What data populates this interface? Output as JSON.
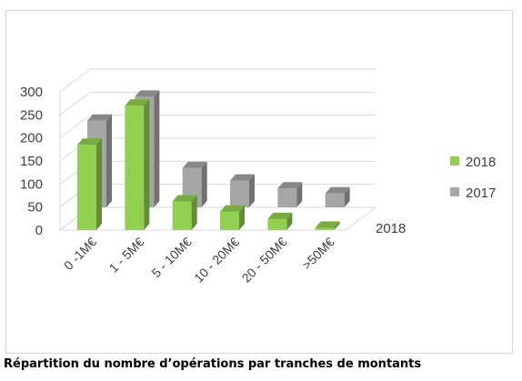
{
  "chart_data": {
    "type": "bar",
    "style": "3d-clustered",
    "title": "",
    "xlabel": "",
    "ylabel": "",
    "categories": [
      "0 -1M€",
      "1 - 5M€",
      "5 - 10M€",
      "10 - 20M€",
      "20 - 50M€",
      ">50M€"
    ],
    "series": [
      {
        "name": "2018",
        "values": [
          185,
          270,
          62,
          40,
          24,
          5
        ],
        "color": "#92d050"
      },
      {
        "name": "2017",
        "values": [
          188,
          240,
          85,
          58,
          41,
          30
        ],
        "color": "#a6a6a6"
      }
    ],
    "yticks": [
      0,
      50,
      100,
      150,
      200,
      250,
      300
    ],
    "ylim": [
      0,
      300
    ],
    "grid": true,
    "legend": "right",
    "depth_axis_label": "2018"
  },
  "caption": "Répartition du nombre d’opérations par tranches de montants"
}
